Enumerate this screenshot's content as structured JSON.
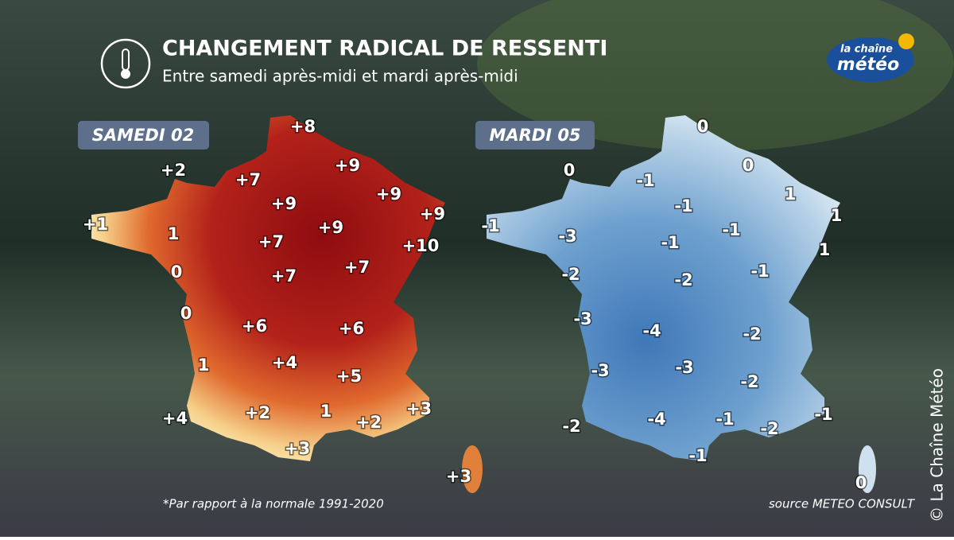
{
  "header": {
    "title": "CHANGEMENT RADICAL DE RESSENTI",
    "subtitle": "Entre samedi après-midi et mardi après-midi"
  },
  "logo": {
    "line1": "la chaîne",
    "line2": "météo"
  },
  "maps": [
    {
      "label": "SAMEDI 02",
      "values": [
        "+8",
        "+2",
        "+7",
        "+9",
        "+9",
        "+9",
        "+9",
        "+1",
        "1",
        "+9",
        "+7",
        "+10",
        "0",
        "+7",
        "+7",
        "0",
        "+6",
        "+6",
        "1",
        "+4",
        "+5",
        "+3",
        "+4",
        "+2",
        "1",
        "+2",
        "+3",
        "+3"
      ]
    },
    {
      "label": "MARDI 05",
      "values": [
        "0",
        "0",
        "0",
        "-1",
        "1",
        "-1",
        "1",
        "-1",
        "-3",
        "-1",
        "-1",
        "1",
        "-2",
        "-2",
        "-1",
        "-3",
        "-4",
        "-2",
        "-3",
        "-3",
        "-2",
        "-1",
        "-2",
        "-4",
        "-1",
        "-2",
        "-1",
        "0"
      ]
    }
  ],
  "footnote": "*Par rapport à la normale 1991-2020",
  "source": "source METEO CONSULT",
  "copyright": "© La Chaîne Météo"
}
